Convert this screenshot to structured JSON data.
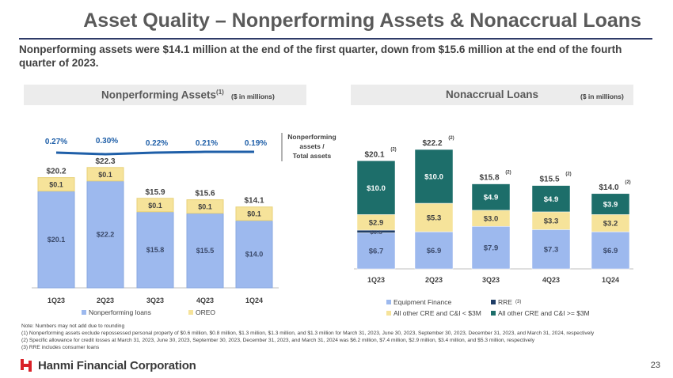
{
  "header": {
    "title": "Asset Quality – Nonperforming Assets & Nonaccrual Loans",
    "subtitle": "Nonperforming assets were $14.1 million at the end of the first quarter, down from $15.6 million at the end of the fourth quarter of 2023."
  },
  "left_panel": {
    "title": "Nonperforming Assets",
    "title_sup": "(1)",
    "units": "($ in millions)"
  },
  "right_panel": {
    "title": "Nonaccrual Loans",
    "units": "($ in millions)"
  },
  "colors": {
    "blue_light": "#9db9ee",
    "yellow": "#f6e39a",
    "teal": "#1d6e6a",
    "navy": "#1f3d66",
    "line": "#1f5fa8",
    "label_blue": "#1f5fa8"
  },
  "chart_data": [
    {
      "type": "bar",
      "stacked": true,
      "title": "Nonperforming Assets",
      "categories": [
        "1Q23",
        "2Q23",
        "3Q23",
        "4Q23",
        "1Q24"
      ],
      "series": [
        {
          "name": "Nonperforming loans",
          "values": [
            20.1,
            22.2,
            15.8,
            15.5,
            14.0
          ],
          "labels": [
            "$20.1",
            "$22.2",
            "$15.8",
            "$15.5",
            "$14.0"
          ]
        },
        {
          "name": "OREO",
          "values": [
            0.1,
            0.1,
            0.1,
            0.1,
            0.1
          ],
          "labels": [
            "$0.1",
            "$0.1",
            "$0.1",
            "$0.1",
            "$0.1"
          ]
        }
      ],
      "totals": [
        "$20.2",
        "$22.3",
        "$15.9",
        "$15.6",
        "$14.1"
      ],
      "total_values": [
        20.2,
        22.3,
        15.9,
        15.6,
        14.1
      ],
      "ratio_line": {
        "name": "Nonperforming assets / Total assets",
        "values": [
          0.27,
          0.3,
          0.22,
          0.21,
          0.19
        ],
        "labels": [
          "0.27%",
          "0.30%",
          "0.22%",
          "0.21%",
          "0.19%"
        ]
      },
      "ratio_legend": [
        "Nonperforming",
        "assets /",
        "Total assets"
      ],
      "legend": [
        "Nonperforming loans",
        "OREO"
      ],
      "legend_position": "bottom",
      "ylim": [
        0,
        25
      ]
    },
    {
      "type": "bar",
      "stacked": true,
      "title": "Nonaccrual Loans",
      "categories": [
        "1Q23",
        "2Q23",
        "3Q23",
        "4Q23",
        "1Q24"
      ],
      "series": [
        {
          "name": "Equipment Finance",
          "values": [
            6.7,
            6.9,
            7.9,
            7.3,
            6.9
          ],
          "labels": [
            "$6.7",
            "$6.9",
            "$7.9",
            "$7.3",
            "$6.9"
          ]
        },
        {
          "name": "RRE",
          "name_sup": "(3)",
          "values": [
            0.5,
            0,
            0,
            0,
            0
          ],
          "labels": [
            "$0.5",
            "",
            "",
            "",
            ""
          ]
        },
        {
          "name": "All other CRE and C&I < $3M",
          "values": [
            2.9,
            5.3,
            3.0,
            3.3,
            3.2
          ],
          "labels": [
            "$2.9",
            "$5.3",
            "$3.0",
            "$3.3",
            "$3.2"
          ]
        },
        {
          "name": "All other CRE and C&I >= $3M",
          "values": [
            10.0,
            10.0,
            4.9,
            4.9,
            3.9
          ],
          "labels": [
            "$10.0",
            "$10.0",
            "$4.9",
            "$4.9",
            "$3.9"
          ]
        }
      ],
      "totals": [
        "$20.1",
        "$22.2",
        "$15.8",
        "$15.5",
        "$14.0"
      ],
      "total_values": [
        20.1,
        22.2,
        15.8,
        15.5,
        14.0
      ],
      "total_sup": "(2)",
      "legend": [
        "Equipment Finance",
        "RRE",
        "All other CRE and C&I < $3M",
        "All other CRE and C&I >= $3M"
      ],
      "legend_sup": "(3)",
      "legend_position": "bottom",
      "ylim": [
        0,
        24
      ]
    }
  ],
  "notes": [
    "Note: Numbers may not add due to rounding",
    "(1)    Nonperforming assets exclude repossessed personal property of $0.6 million, $0.8 million, $1.3 million, $1.3 million, and $1.3 million for March 31, 2023, June 30, 2023, September 30, 2023, December 31, 2023, and March 31, 2024, respectively",
    "(2)    Specific allowance for credit losses at March 31, 2023, June 30, 2023, September 30, 2023, December 31, 2023, and March 31, 2024 was $6.2 million, $7.4 million, $2.9 million, $3.4 million, and $5.3 million, respectively",
    "(3)    RRE includes consumer loans"
  ],
  "footer": {
    "company": "Hanmi Financial Corporation",
    "page": "23"
  }
}
